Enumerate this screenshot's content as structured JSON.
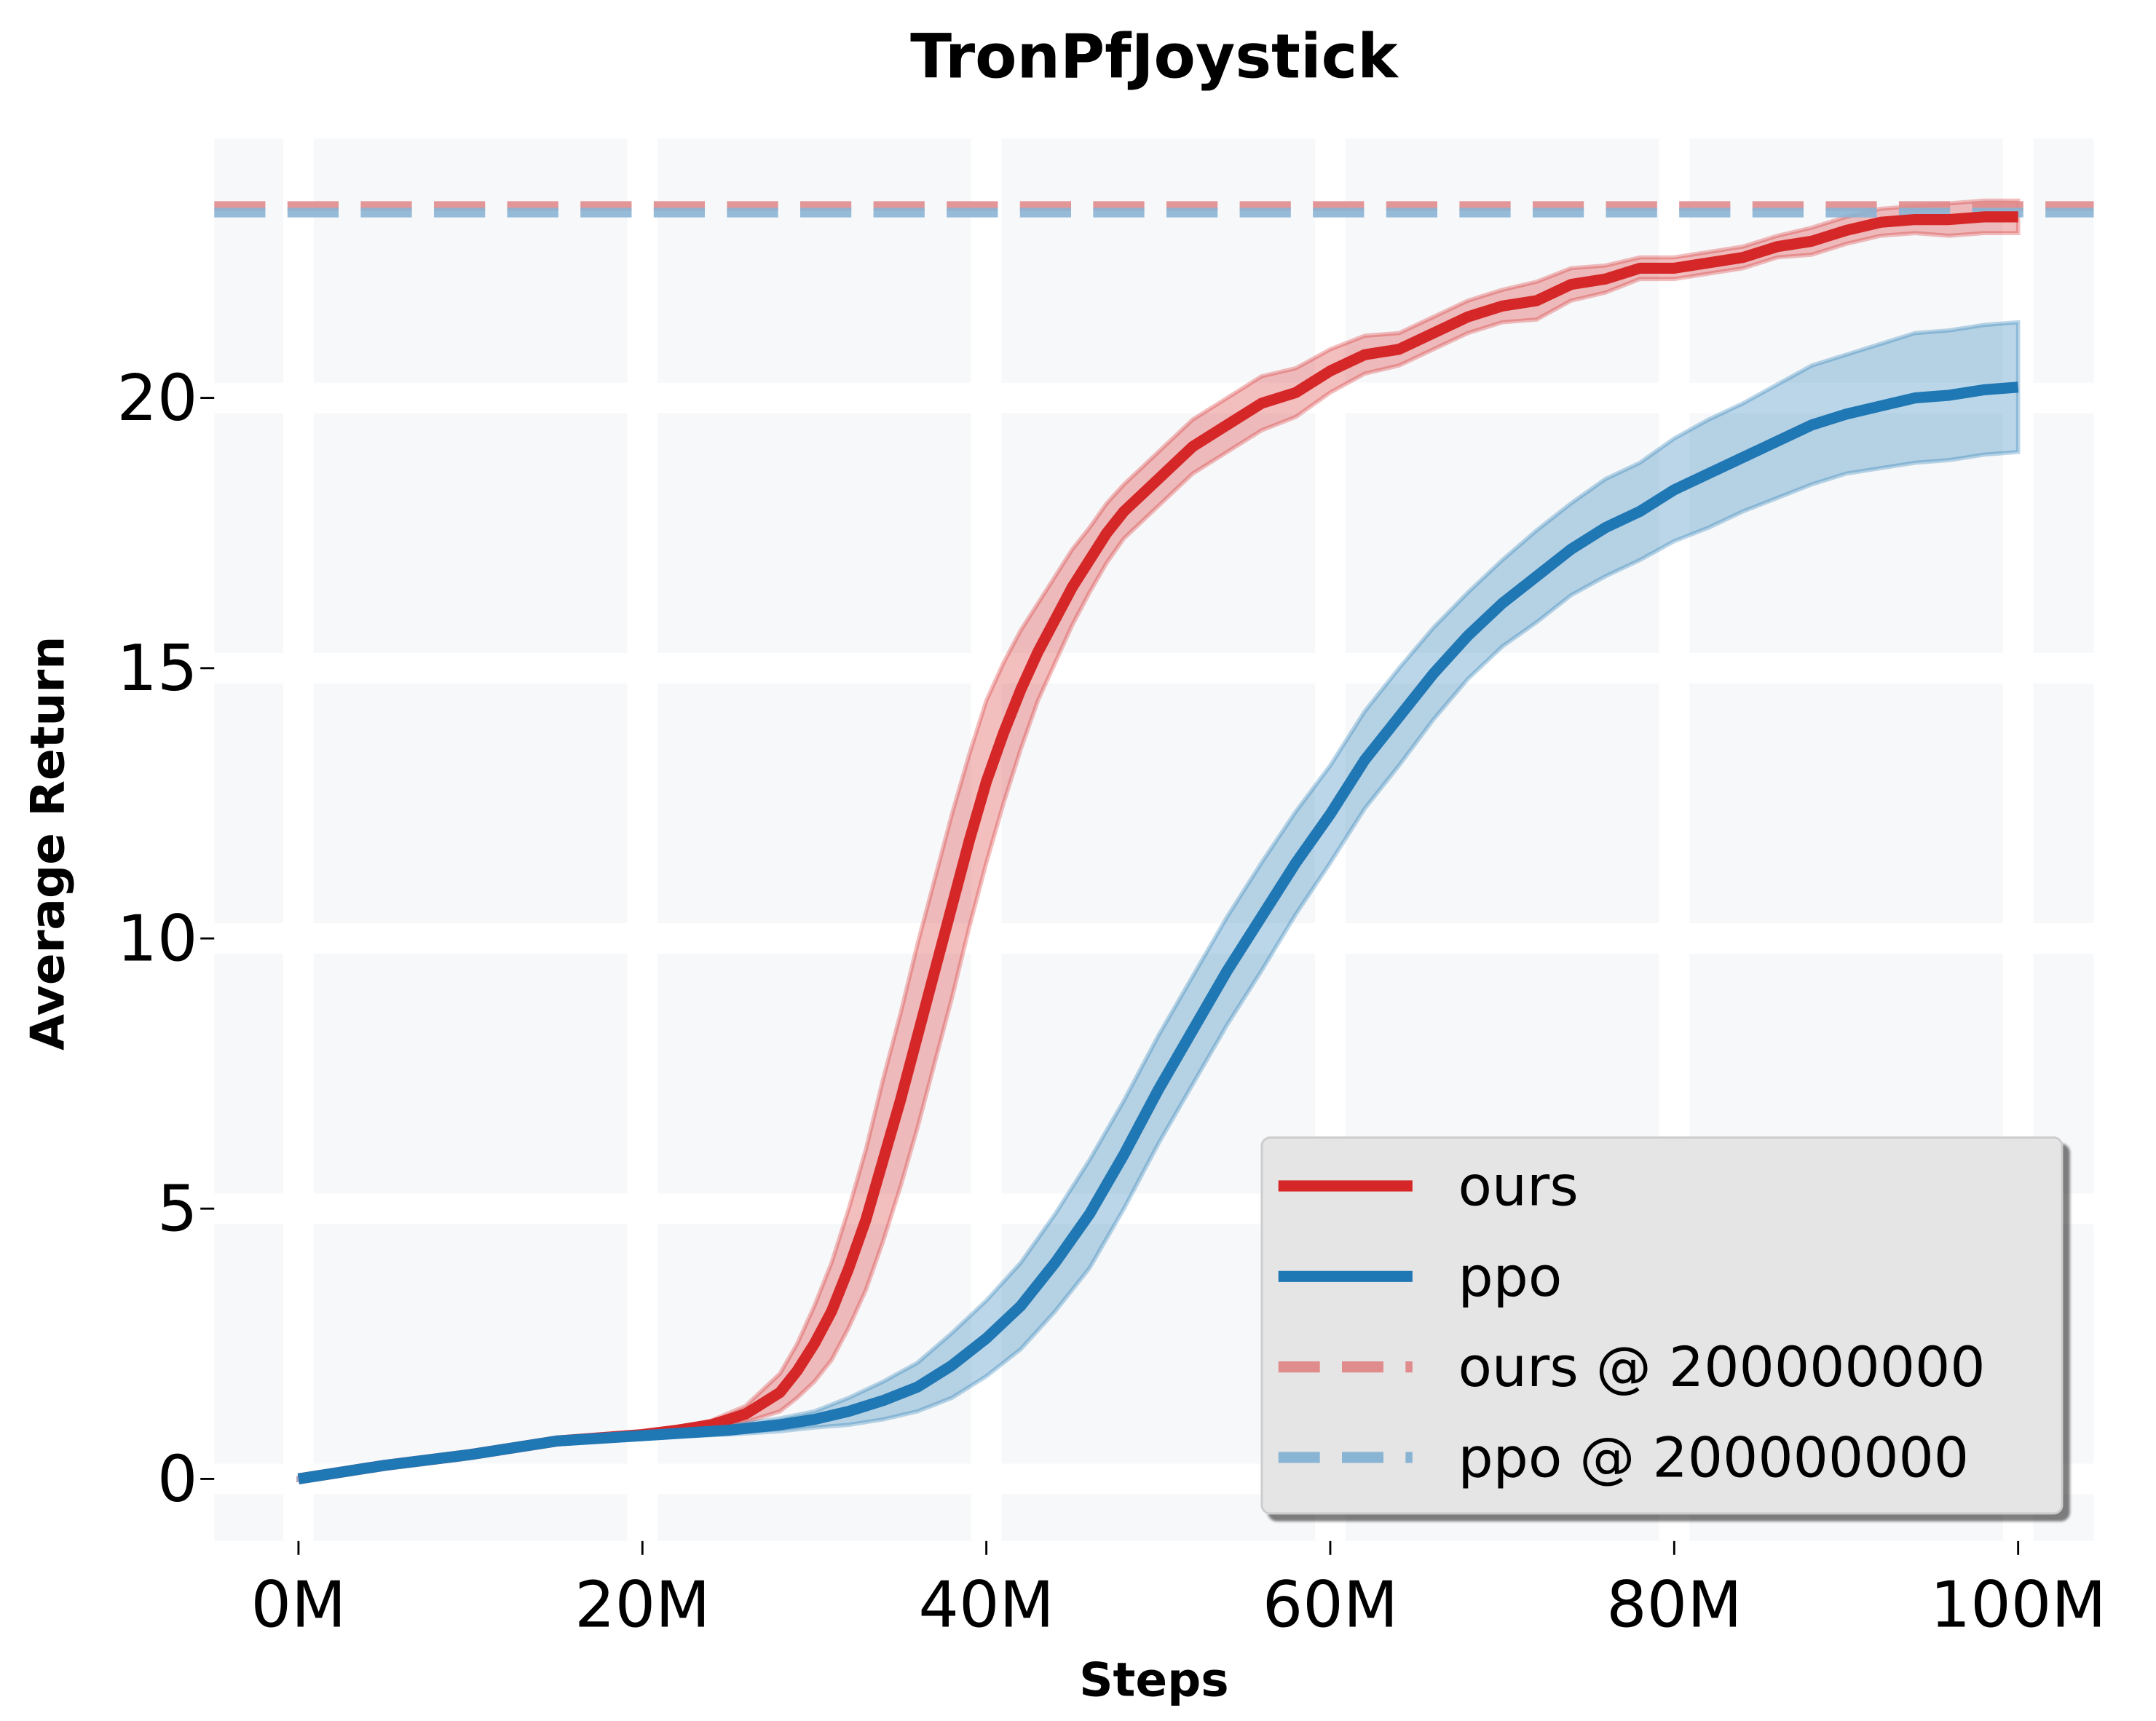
{
  "chart_data": {
    "type": "line",
    "title": "TronPfJoystick",
    "xlabel": "Steps",
    "ylabel": "Average Return",
    "xlim": [
      -4.9,
      104.4
    ],
    "ylim": [
      -1.15,
      24.8
    ],
    "x_unit": "M",
    "xticks": [
      0,
      20,
      40,
      60,
      80,
      100
    ],
    "xtick_labels": [
      "0M",
      "20M",
      "40M",
      "60M",
      "80M",
      "100M"
    ],
    "yticks": [
      0,
      5,
      10,
      15,
      20
    ],
    "ytick_labels": [
      "0",
      "5",
      "10",
      "15",
      "20"
    ],
    "grid": true,
    "legend_position": "bottom-right",
    "series": [
      {
        "name": "ours",
        "color": "#d62728",
        "x": [
          0,
          5,
          10,
          15,
          20,
          22,
          24,
          26,
          28,
          29,
          30,
          31,
          32,
          33,
          34,
          35,
          36,
          37,
          38,
          39,
          40,
          41,
          42,
          43,
          44,
          45,
          46,
          47,
          48,
          50,
          52,
          54,
          56,
          58,
          60,
          62,
          64,
          66,
          68,
          70,
          72,
          74,
          76,
          78,
          80,
          82,
          84,
          86,
          88,
          90,
          92,
          94,
          96,
          98,
          100
        ],
        "y": [
          0,
          0.25,
          0.45,
          0.7,
          0.82,
          0.9,
          1.0,
          1.2,
          1.6,
          2.0,
          2.5,
          3.1,
          3.9,
          4.8,
          5.9,
          7.0,
          8.2,
          9.4,
          10.6,
          11.8,
          12.9,
          13.8,
          14.6,
          15.3,
          15.9,
          16.5,
          17.0,
          17.5,
          17.9,
          18.5,
          19.1,
          19.5,
          19.9,
          20.1,
          20.5,
          20.8,
          20.9,
          21.2,
          21.5,
          21.7,
          21.8,
          22.1,
          22.2,
          22.4,
          22.4,
          22.5,
          22.6,
          22.8,
          22.9,
          23.1,
          23.25,
          23.3,
          23.3,
          23.35,
          23.35
        ],
        "band_halfwidth": [
          0.02,
          0.03,
          0.03,
          0.03,
          0.04,
          0.05,
          0.08,
          0.15,
          0.35,
          0.5,
          0.7,
          0.9,
          1.1,
          1.3,
          1.5,
          1.6,
          1.7,
          1.7,
          1.7,
          1.6,
          1.5,
          1.3,
          1.1,
          0.9,
          0.8,
          0.7,
          0.6,
          0.55,
          0.5,
          0.5,
          0.5,
          0.5,
          0.5,
          0.45,
          0.4,
          0.35,
          0.3,
          0.3,
          0.3,
          0.3,
          0.35,
          0.3,
          0.25,
          0.2,
          0.2,
          0.2,
          0.2,
          0.2,
          0.25,
          0.25,
          0.25,
          0.25,
          0.3,
          0.3,
          0.3
        ]
      },
      {
        "name": "ppo",
        "color": "#1f77b4",
        "x": [
          0,
          5,
          10,
          15,
          20,
          25,
          28,
          30,
          32,
          34,
          36,
          38,
          40,
          42,
          44,
          46,
          48,
          50,
          52,
          54,
          56,
          58,
          60,
          62,
          64,
          66,
          68,
          70,
          72,
          74,
          76,
          78,
          80,
          82,
          84,
          86,
          88,
          90,
          92,
          94,
          96,
          98,
          100
        ],
        "y": [
          0,
          0.25,
          0.45,
          0.7,
          0.8,
          0.9,
          1.0,
          1.1,
          1.25,
          1.45,
          1.7,
          2.1,
          2.6,
          3.2,
          4.0,
          4.9,
          6.0,
          7.2,
          8.3,
          9.4,
          10.4,
          11.4,
          12.3,
          13.3,
          14.1,
          14.9,
          15.6,
          16.2,
          16.7,
          17.2,
          17.6,
          17.9,
          18.3,
          18.6,
          18.9,
          19.2,
          19.5,
          19.7,
          19.85,
          20.0,
          20.05,
          20.15,
          20.2
        ],
        "band_halfwidth": [
          0.02,
          0.03,
          0.03,
          0.03,
          0.04,
          0.08,
          0.12,
          0.15,
          0.25,
          0.35,
          0.45,
          0.6,
          0.7,
          0.8,
          0.9,
          1.0,
          1.0,
          1.0,
          1.0,
          1.0,
          1.0,
          0.95,
          0.9,
          0.9,
          0.9,
          0.85,
          0.8,
          0.8,
          0.85,
          0.85,
          0.9,
          0.9,
          0.95,
          1.0,
          1.0,
          1.05,
          1.1,
          1.1,
          1.15,
          1.2,
          1.2,
          1.2,
          1.2
        ]
      }
    ],
    "reference_lines": [
      {
        "name": "ours @ 200000000",
        "y": 23.55,
        "color": "#e08b8c",
        "style": "dashed"
      },
      {
        "name": "ppo @ 200000000",
        "y": 23.43,
        "color": "#8ab4d4",
        "style": "dashed"
      }
    ]
  }
}
